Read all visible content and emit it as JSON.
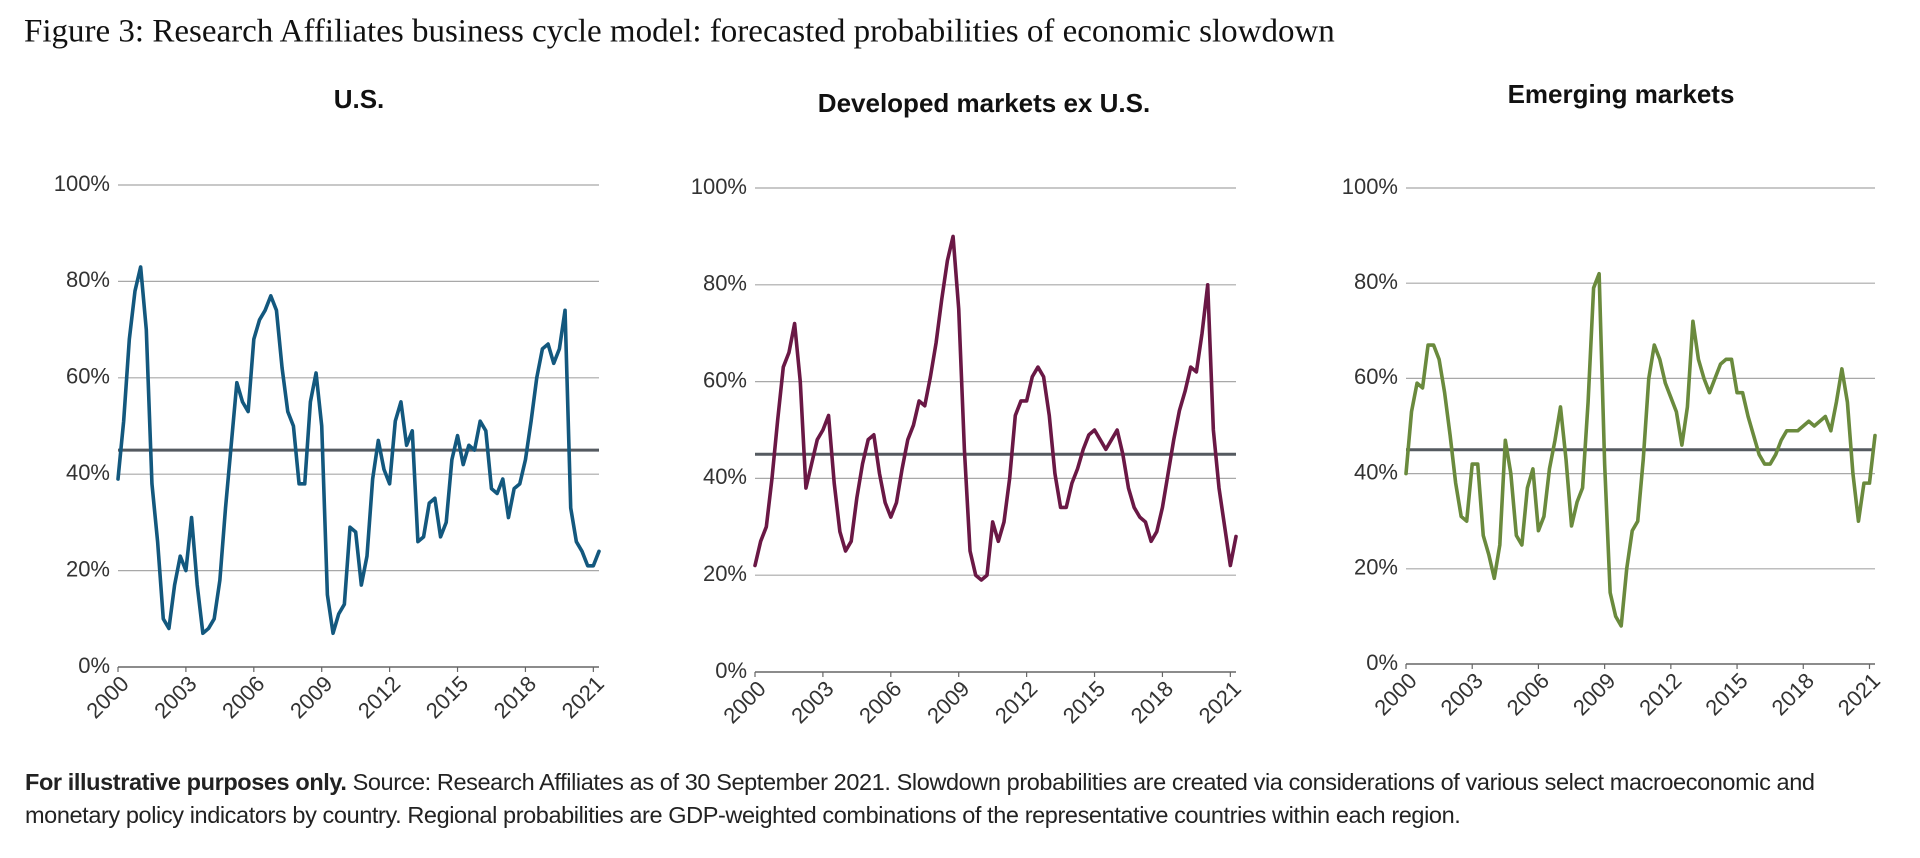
{
  "title": "Figure 3: Research Affiliates business cycle model: forecasted probabilities of economic slowdown",
  "chart_data": [
    {
      "type": "line",
      "title": "U.S.",
      "x": [
        2000,
        2000.25,
        2000.5,
        2000.75,
        2001,
        2001.25,
        2001.5,
        2001.75,
        2002,
        2002.25,
        2002.5,
        2002.75,
        2003,
        2003.25,
        2003.5,
        2003.75,
        2004,
        2004.25,
        2004.5,
        2004.75,
        2005,
        2005.25,
        2005.5,
        2005.75,
        2006,
        2006.25,
        2006.5,
        2006.75,
        2007,
        2007.25,
        2007.5,
        2007.75,
        2008,
        2008.25,
        2008.5,
        2008.75,
        2009,
        2009.25,
        2009.5,
        2009.75,
        2010,
        2010.25,
        2010.5,
        2010.75,
        2011,
        2011.25,
        2011.5,
        2011.75,
        2012,
        2012.25,
        2012.5,
        2012.75,
        2013,
        2013.25,
        2013.5,
        2013.75,
        2014,
        2014.25,
        2014.5,
        2014.75,
        2015,
        2015.25,
        2015.5,
        2015.75,
        2016,
        2016.25,
        2016.5,
        2016.75,
        2017,
        2017.25,
        2017.5,
        2017.75,
        2018,
        2018.25,
        2018.5,
        2018.75,
        2019,
        2019.25,
        2019.5,
        2019.75,
        2020,
        2020.25,
        2020.5,
        2020.75,
        2021,
        2021.25
      ],
      "series": [
        {
          "color": "#13587e",
          "values": [
            39,
            51,
            68,
            78,
            83,
            70,
            38,
            26,
            10,
            8,
            17,
            23,
            20,
            31,
            17,
            7,
            8,
            10,
            18,
            33,
            46,
            59,
            55,
            53,
            68,
            72,
            74,
            77,
            74,
            62,
            53,
            50,
            38,
            38,
            55,
            61,
            50,
            15,
            7,
            11,
            13,
            29,
            28,
            17,
            23,
            39,
            47,
            41,
            38,
            51,
            55,
            46,
            49,
            26,
            27,
            34,
            35,
            27,
            30,
            43,
            48,
            42,
            46,
            45,
            51,
            49,
            37,
            36,
            39,
            31,
            37,
            38,
            43,
            51,
            60,
            66,
            67,
            63,
            66,
            74,
            33,
            26,
            24,
            21,
            21,
            24
          ]
        }
      ],
      "reference_line": 45,
      "reference_color": "#555a60",
      "xlim": [
        2000,
        2021.25
      ],
      "xticks": [
        2000,
        2003,
        2006,
        2009,
        2012,
        2015,
        2018,
        2021
      ],
      "ylim": [
        0,
        100
      ],
      "yticks": [
        {
          "value": 0,
          "label": "0%"
        },
        {
          "value": 20,
          "label": "20%"
        },
        {
          "value": 40,
          "label": "40%"
        },
        {
          "value": 60,
          "label": "60%"
        },
        {
          "value": 80,
          "label": "80%"
        },
        {
          "value": 100,
          "label": "100%"
        }
      ],
      "grid": true
    },
    {
      "type": "line",
      "title": "Developed markets ex U.S.",
      "x": [
        2000,
        2000.25,
        2000.5,
        2000.75,
        2001,
        2001.25,
        2001.5,
        2001.75,
        2002,
        2002.25,
        2002.5,
        2002.75,
        2003,
        2003.25,
        2003.5,
        2003.75,
        2004,
        2004.25,
        2004.5,
        2004.75,
        2005,
        2005.25,
        2005.5,
        2005.75,
        2006,
        2006.25,
        2006.5,
        2006.75,
        2007,
        2007.25,
        2007.5,
        2007.75,
        2008,
        2008.25,
        2008.5,
        2008.75,
        2009,
        2009.25,
        2009.5,
        2009.75,
        2010,
        2010.25,
        2010.5,
        2010.75,
        2011,
        2011.25,
        2011.5,
        2011.75,
        2012,
        2012.25,
        2012.5,
        2012.75,
        2013,
        2013.25,
        2013.5,
        2013.75,
        2014,
        2014.25,
        2014.5,
        2014.75,
        2015,
        2015.25,
        2015.5,
        2015.75,
        2016,
        2016.25,
        2016.5,
        2016.75,
        2017,
        2017.25,
        2017.5,
        2017.75,
        2018,
        2018.25,
        2018.5,
        2018.75,
        2019,
        2019.25,
        2019.5,
        2019.75,
        2020,
        2020.25,
        2020.5,
        2020.75,
        2021,
        2021.25
      ],
      "series": [
        {
          "color": "#6a1845",
          "values": [
            22,
            27,
            30,
            40,
            52,
            63,
            66,
            72,
            60,
            38,
            43,
            48,
            50,
            53,
            39,
            29,
            25,
            27,
            36,
            43,
            48,
            49,
            41,
            35,
            32,
            35,
            42,
            48,
            51,
            56,
            55,
            61,
            68,
            77,
            85,
            90,
            75,
            46,
            25,
            20,
            19,
            20,
            31,
            27,
            31,
            40,
            53,
            56,
            56,
            61,
            63,
            61,
            53,
            41,
            34,
            34,
            39,
            42,
            46,
            49,
            50,
            48,
            46,
            48,
            50,
            45,
            38,
            34,
            32,
            31,
            27,
            29,
            34,
            41,
            48,
            54,
            58,
            63,
            62,
            70,
            80,
            50,
            38,
            30,
            22,
            28
          ]
        }
      ],
      "reference_line": 45,
      "reference_color": "#555a60",
      "xlim": [
        2000,
        2021.25
      ],
      "xticks": [
        2000,
        2003,
        2006,
        2009,
        2012,
        2015,
        2018,
        2021
      ],
      "ylim": [
        0,
        100
      ],
      "yticks": [
        {
          "value": 0,
          "label": "0%"
        },
        {
          "value": 20,
          "label": "20%"
        },
        {
          "value": 40,
          "label": "40%"
        },
        {
          "value": 60,
          "label": "60%"
        },
        {
          "value": 80,
          "label": "80%"
        },
        {
          "value": 100,
          "label": "100%"
        }
      ],
      "grid": true
    },
    {
      "type": "line",
      "title": "Emerging markets",
      "x": [
        2000,
        2000.25,
        2000.5,
        2000.75,
        2001,
        2001.25,
        2001.5,
        2001.75,
        2002,
        2002.25,
        2002.5,
        2002.75,
        2003,
        2003.25,
        2003.5,
        2003.75,
        2004,
        2004.25,
        2004.5,
        2004.75,
        2005,
        2005.25,
        2005.5,
        2005.75,
        2006,
        2006.25,
        2006.5,
        2006.75,
        2007,
        2007.25,
        2007.5,
        2007.75,
        2008,
        2008.25,
        2008.5,
        2008.75,
        2009,
        2009.25,
        2009.5,
        2009.75,
        2010,
        2010.25,
        2010.5,
        2010.75,
        2011,
        2011.25,
        2011.5,
        2011.75,
        2012,
        2012.25,
        2012.5,
        2012.75,
        2013,
        2013.25,
        2013.5,
        2013.75,
        2014,
        2014.25,
        2014.5,
        2014.75,
        2015,
        2015.25,
        2015.5,
        2015.75,
        2016,
        2016.25,
        2016.5,
        2016.75,
        2017,
        2017.25,
        2017.5,
        2017.75,
        2018,
        2018.25,
        2018.5,
        2018.75,
        2019,
        2019.25,
        2019.5,
        2019.75,
        2020,
        2020.25,
        2020.5,
        2020.75,
        2021,
        2021.25
      ],
      "series": [
        {
          "color": "#6a8a3d",
          "values": [
            40,
            53,
            59,
            58,
            67,
            67,
            64,
            57,
            48,
            38,
            31,
            30,
            42,
            42,
            27,
            23,
            18,
            25,
            47,
            40,
            27,
            25,
            37,
            41,
            28,
            31,
            41,
            47,
            54,
            43,
            29,
            34,
            37,
            55,
            79,
            82,
            42,
            15,
            10,
            8,
            20,
            28,
            30,
            43,
            60,
            67,
            64,
            59,
            56,
            53,
            46,
            54,
            72,
            64,
            60,
            57,
            60,
            63,
            64,
            64,
            57,
            57,
            52,
            48,
            44,
            42,
            42,
            44,
            47,
            49,
            49,
            49,
            50,
            51,
            50,
            51,
            52,
            49,
            55,
            62,
            55,
            40,
            30,
            38,
            38,
            48
          ]
        }
      ],
      "reference_line": 45,
      "reference_color": "#555a60",
      "xlim": [
        2000,
        2021.25
      ],
      "xticks": [
        2000,
        2003,
        2006,
        2009,
        2012,
        2015,
        2018,
        2021
      ],
      "ylim": [
        0,
        100
      ],
      "yticks": [
        {
          "value": 0,
          "label": "0%"
        },
        {
          "value": 20,
          "label": "20%"
        },
        {
          "value": 40,
          "label": "40%"
        },
        {
          "value": 60,
          "label": "60%"
        },
        {
          "value": 80,
          "label": "80%"
        },
        {
          "value": 100,
          "label": "100%"
        }
      ],
      "grid": true
    }
  ],
  "footnote": {
    "emphasis": "For illustrative purposes only.",
    "text": "Source: Research Affiliates as of 30 September 2021. Slowdown probabilities are created via considerations of various select macroeconomic and monetary policy indicators by country. Regional probabilities are GDP-weighted combinations of the representative countries within each region."
  }
}
